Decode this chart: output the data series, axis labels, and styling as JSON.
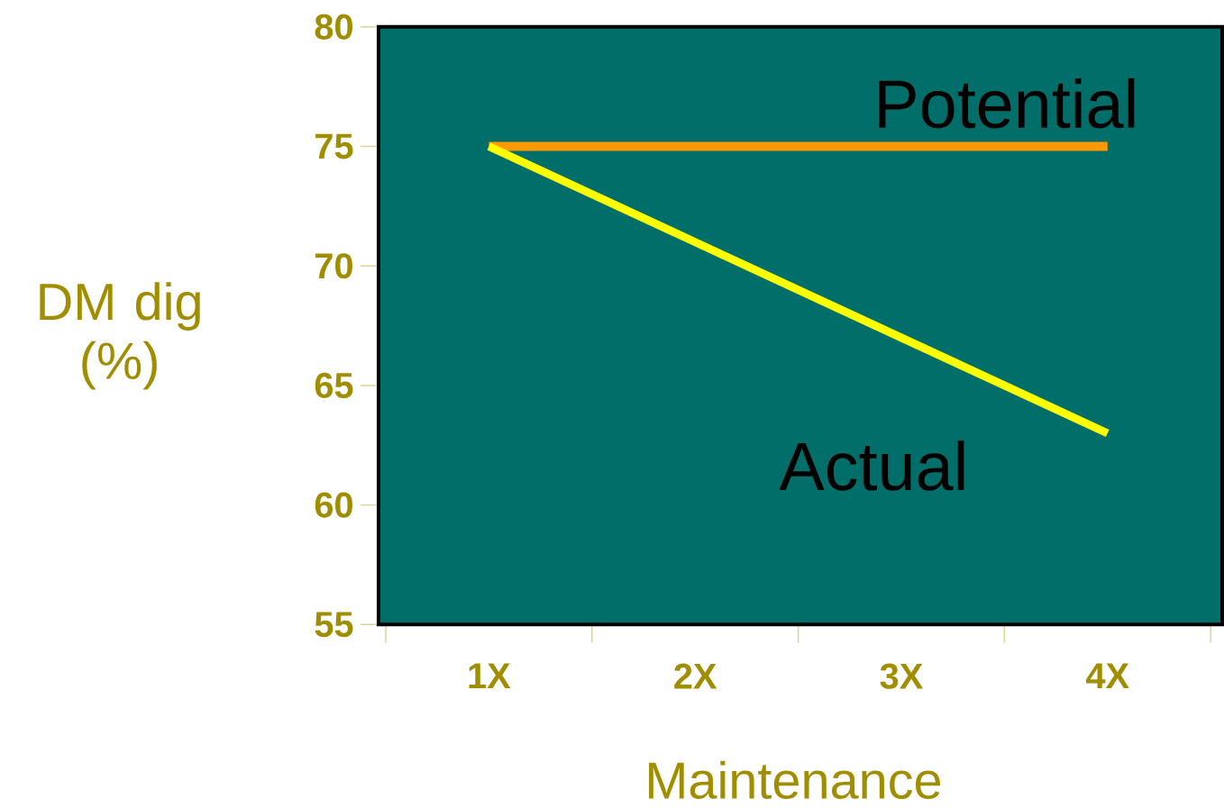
{
  "chart_data": {
    "type": "line",
    "xlabel": "Maintenance",
    "ylabel": "DM dig (%)",
    "categories": [
      "1X",
      "2X",
      "3X",
      "4X"
    ],
    "series": [
      {
        "name": "Potential",
        "color": "#ff9900",
        "values": [
          75,
          75,
          75,
          75
        ]
      },
      {
        "name": "Actual",
        "color": "#ffff00",
        "values": [
          75,
          71,
          67,
          63
        ]
      }
    ],
    "ylim": [
      55,
      80
    ],
    "yticks": [
      55,
      60,
      65,
      70,
      75,
      80
    ]
  }
}
